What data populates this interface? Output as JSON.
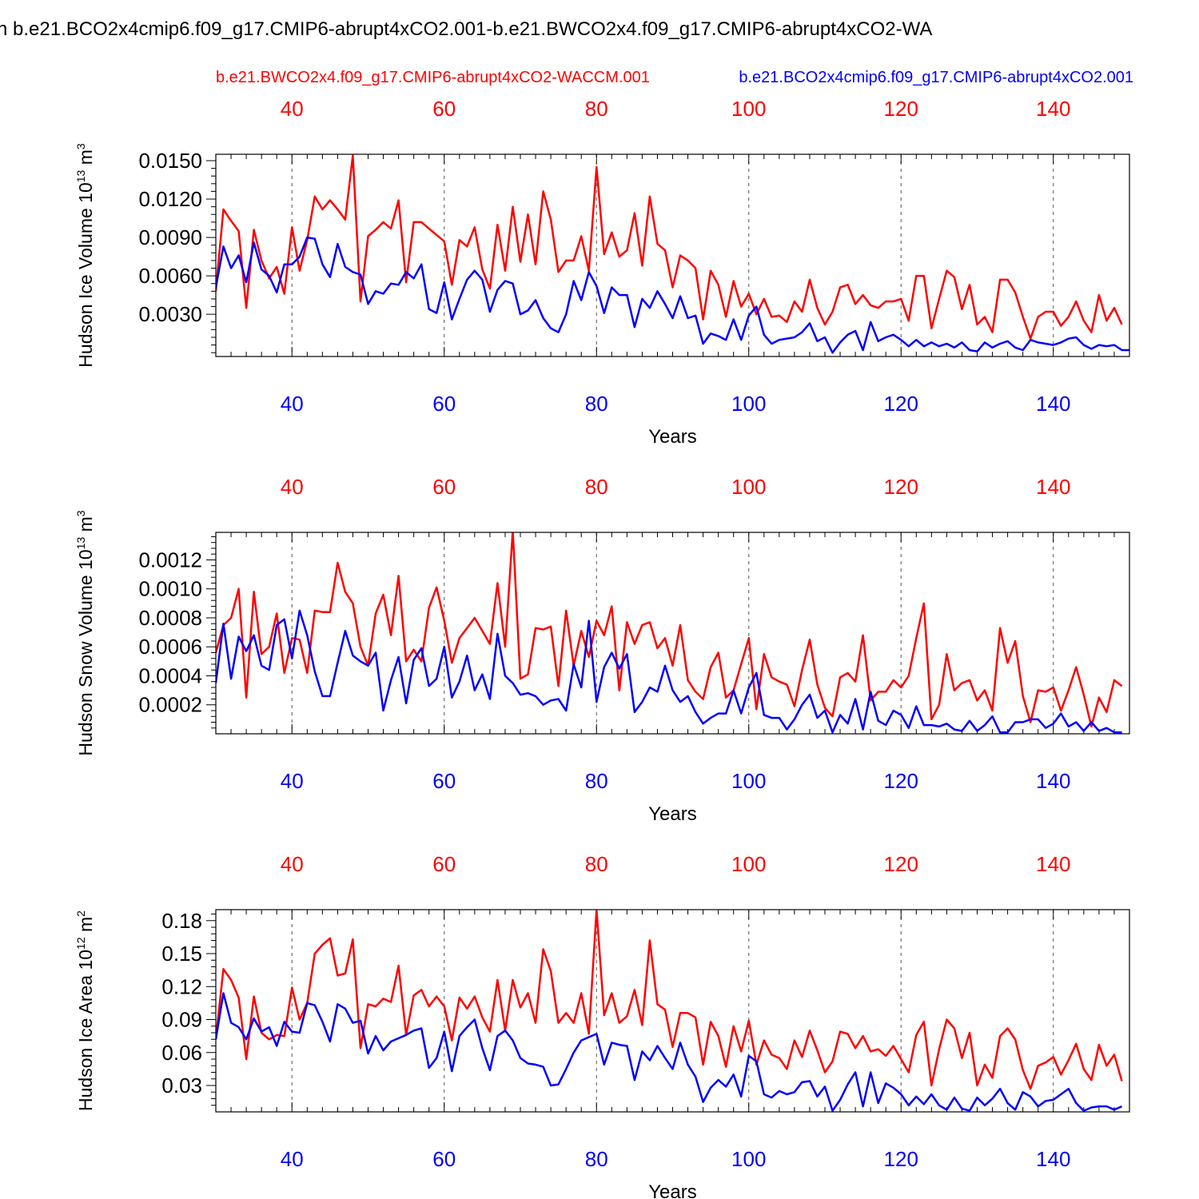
{
  "title": "n b.e21.BCO2x4cmip6.f09_g17.CMIP6-abrupt4xCO2.001-b.e21.BWCO2x4.f09_g17.CMIP6-abrupt4xCO2-WA",
  "legend": {
    "red": "b.e21.BWCO2x4.f09_g17.CMIP6-abrupt4xCO2-WACCM.001",
    "blue": "b.e21.BCO2x4cmip6.f09_g17.CMIP6-abrupt4xCO2.001"
  },
  "colors": {
    "red": "#ff0000",
    "blue": "#0000ff",
    "axis": "#000000",
    "grid": "#555555"
  },
  "chart_data": [
    {
      "type": "line",
      "ylabel": "Hudson Ice Volume 10",
      "ylabel_sup": "13",
      "ylabel_unit": " m",
      "ylabel_unit_sup": "3",
      "xlabel": "Years",
      "xlim": [
        30,
        150
      ],
      "ylim": [
        -0.0003,
        0.0155
      ],
      "x_ticks": [
        40,
        60,
        80,
        100,
        120,
        140
      ],
      "x_tick_labels": [
        "40",
        "60",
        "80",
        "100",
        "120",
        "140"
      ],
      "y_ticks": [
        0.003,
        0.006,
        0.009,
        0.012,
        0.015
      ],
      "y_tick_labels": [
        "0.0030",
        "0.0060",
        "0.0090",
        "0.0120",
        "0.0150"
      ],
      "series": [
        {
          "name": "b.e21.BWCO2x4.f09_g17.CMIP6-abrupt4xCO2-WACCM.001",
          "color": "red",
          "x_start": 30,
          "values": [
            0.0048,
            0.0112,
            0.0103,
            0.0095,
            0.0035,
            0.0096,
            0.0072,
            0.0058,
            0.0067,
            0.0046,
            0.0098,
            0.0064,
            0.0088,
            0.0122,
            0.0112,
            0.0119,
            0.0112,
            0.0104,
            0.0154,
            0.004,
            0.0091,
            0.0096,
            0.0102,
            0.0097,
            0.0119,
            0.0055,
            0.0102,
            0.0102,
            0.0097,
            0.0092,
            0.0087,
            0.0053,
            0.0088,
            0.0083,
            0.0098,
            0.0065,
            0.005,
            0.01,
            0.0064,
            0.0114,
            0.0071,
            0.0108,
            0.0069,
            0.0126,
            0.0104,
            0.0063,
            0.0072,
            0.0072,
            0.0091,
            0.0064,
            0.0145,
            0.0077,
            0.0094,
            0.0075,
            0.008,
            0.0109,
            0.0068,
            0.0122,
            0.0085,
            0.008,
            0.0051,
            0.0076,
            0.0072,
            0.0066,
            0.0026,
            0.0064,
            0.0053,
            0.0028,
            0.0056,
            0.0036,
            0.0046,
            0.003,
            0.0042,
            0.0028,
            0.0029,
            0.0024,
            0.004,
            0.0032,
            0.0057,
            0.0035,
            0.0022,
            0.0032,
            0.0051,
            0.0053,
            0.0038,
            0.0045,
            0.0037,
            0.0035,
            0.004,
            0.004,
            0.0042,
            0.0025,
            0.006,
            0.006,
            0.0019,
            0.0042,
            0.0064,
            0.0059,
            0.0034,
            0.0053,
            0.0022,
            0.0028,
            0.0016,
            0.0057,
            0.0057,
            0.0047,
            0.0028,
            0.0011,
            0.0028,
            0.0032,
            0.0032,
            0.0021,
            0.0028,
            0.004,
            0.0025,
            0.0016,
            0.0045,
            0.0025,
            0.0035,
            0.0022
          ]
        },
        {
          "name": "b.e21.BCO2x4cmip6.f09_g17.CMIP6-abrupt4xCO2.001",
          "color": "blue",
          "x_start": 30,
          "values": [
            0.0051,
            0.0083,
            0.0066,
            0.0076,
            0.0055,
            0.0086,
            0.0065,
            0.006,
            0.0047,
            0.0069,
            0.0069,
            0.0075,
            0.009,
            0.0089,
            0.0069,
            0.0059,
            0.0085,
            0.0067,
            0.0063,
            0.0061,
            0.0038,
            0.0048,
            0.0046,
            0.0054,
            0.0053,
            0.0063,
            0.0058,
            0.0069,
            0.0034,
            0.0031,
            0.0055,
            0.0026,
            0.0042,
            0.0057,
            0.0064,
            0.0057,
            0.0032,
            0.0049,
            0.0056,
            0.0054,
            0.003,
            0.0033,
            0.0041,
            0.0027,
            0.0019,
            0.0016,
            0.003,
            0.0056,
            0.0041,
            0.0063,
            0.0052,
            0.0031,
            0.0051,
            0.0045,
            0.0045,
            0.002,
            0.0042,
            0.0035,
            0.0048,
            0.0038,
            0.0027,
            0.0044,
            0.0027,
            0.0029,
            0.0007,
            0.0015,
            0.0013,
            0.001,
            0.0026,
            0.001,
            0.0029,
            0.0036,
            0.0014,
            0.0007,
            0.001,
            0.0011,
            0.0012,
            0.0016,
            0.0023,
            0.0009,
            0.0012,
            0.0,
            0.0008,
            0.0014,
            0.0017,
            0.0002,
            0.0024,
            0.0009,
            0.0012,
            0.0014,
            0.001,
            0.0005,
            0.001,
            0.0005,
            0.0008,
            0.0005,
            0.0007,
            0.0004,
            0.0008,
            0.0002,
            0.0001,
            0.0008,
            0.0004,
            0.0007,
            0.0009,
            0.0004,
            0.0002,
            0.001,
            0.0008,
            0.0007,
            0.0006,
            0.0008,
            0.0011,
            0.0012,
            0.0006,
            0.0003,
            0.0006,
            0.0005,
            0.0006,
            0.0002,
            0.0002
          ]
        }
      ]
    },
    {
      "type": "line",
      "ylabel": "Hudson Snow Volume 10",
      "ylabel_sup": "13",
      "ylabel_unit": " m",
      "ylabel_unit_sup": "3",
      "xlabel": "Years",
      "xlim": [
        30,
        150
      ],
      "ylim": [
        0.0,
        0.00139
      ],
      "x_ticks": [
        40,
        60,
        80,
        100,
        120,
        140
      ],
      "x_tick_labels": [
        "40",
        "60",
        "80",
        "100",
        "120",
        "140"
      ],
      "y_ticks": [
        0.0002,
        0.0004,
        0.0006,
        0.0008,
        0.001,
        0.0012
      ],
      "y_tick_labels": [
        "0.0002",
        "0.0004",
        "0.0006",
        "0.0008",
        "0.0010",
        "0.0012"
      ],
      "series": [
        {
          "name": "b.e21.BWCO2x4.f09_g17.CMIP6-abrupt4xCO2-WACCM.001",
          "color": "red",
          "x_start": 30,
          "values": [
            0.00056,
            0.00075,
            0.0008,
            0.001,
            0.00025,
            0.00098,
            0.00055,
            0.0006,
            0.00083,
            0.00042,
            0.00066,
            0.00065,
            0.00042,
            0.00085,
            0.00084,
            0.00084,
            0.00118,
            0.00098,
            0.0009,
            0.0006,
            0.00047,
            0.00083,
            0.00096,
            0.00068,
            0.00109,
            0.0005,
            0.00058,
            0.0005,
            0.00087,
            0.00101,
            0.00078,
            0.00049,
            0.00066,
            0.00073,
            0.0008,
            0.00071,
            0.00062,
            0.00104,
            0.0006,
            0.0014,
            0.00038,
            0.00041,
            0.00073,
            0.00072,
            0.00074,
            0.00033,
            0.00085,
            0.00047,
            0.00071,
            0.00053,
            0.00078,
            0.00068,
            0.00088,
            0.0003,
            0.00077,
            0.00062,
            0.00075,
            0.00077,
            0.00059,
            0.00066,
            0.00047,
            0.00075,
            0.00037,
            0.00029,
            0.00024,
            0.00046,
            0.00056,
            0.00025,
            0.0003,
            0.00048,
            0.00066,
            0.00017,
            0.00055,
            0.00039,
            0.00036,
            0.00034,
            0.00019,
            0.00044,
            0.00065,
            0.00034,
            0.00018,
            0.00012,
            0.00039,
            0.00042,
            0.00036,
            0.00068,
            0.00023,
            0.00029,
            0.00029,
            0.00037,
            0.00032,
            0.0004,
            0.00066,
            0.0009,
            0.0001,
            0.0002,
            0.00055,
            0.0003,
            0.00035,
            0.00037,
            0.00023,
            0.0003,
            0.00016,
            0.00073,
            0.00049,
            0.00064,
            0.00026,
            8e-05,
            0.0003,
            0.00029,
            0.00032,
            0.00016,
            0.0003,
            0.00046,
            0.00027,
            5e-05,
            0.00025,
            0.00015,
            0.00037,
            0.00033
          ]
        },
        {
          "name": "b.e21.BCO2x4cmip6.f09_g17.CMIP6-abrupt4xCO2.001",
          "color": "blue",
          "x_start": 30,
          "values": [
            0.00035,
            0.00076,
            0.00038,
            0.00067,
            0.00057,
            0.00068,
            0.00047,
            0.00044,
            0.00075,
            0.00079,
            0.00052,
            0.00085,
            0.00068,
            0.00043,
            0.00026,
            0.00026,
            0.00049,
            0.00071,
            0.00054,
            0.0005,
            0.00047,
            0.00056,
            0.00016,
            0.00037,
            0.00053,
            0.00021,
            0.00051,
            0.00059,
            0.00033,
            0.00038,
            0.0006,
            0.00025,
            0.00036,
            0.00054,
            0.0003,
            0.00041,
            0.00024,
            0.00069,
            0.0004,
            0.00035,
            0.00027,
            0.00028,
            0.00026,
            0.0002,
            0.00023,
            0.00024,
            0.00016,
            0.00048,
            0.00032,
            0.00078,
            0.00022,
            0.00046,
            0.00056,
            0.00045,
            0.00055,
            0.00015,
            0.00022,
            0.00032,
            0.00029,
            0.00047,
            0.0003,
            0.00022,
            0.00026,
            0.00015,
            7e-05,
            0.00011,
            0.00014,
            0.00014,
            0.0003,
            0.00014,
            0.00032,
            0.00042,
            0.00013,
            0.00011,
            0.00011,
            3e-05,
            0.0001,
            0.0002,
            0.00027,
            0.00011,
            0.00016,
            1e-05,
            0.00013,
            7e-05,
            0.00024,
            3e-05,
            0.00029,
            9e-05,
            6e-05,
            0.00016,
            0.00013,
            4e-05,
            0.00019,
            6e-05,
            6e-05,
            5e-05,
            7e-05,
            3e-05,
            2e-05,
            9e-05,
            2e-05,
            6e-05,
            0.00012,
            1e-05,
            1e-05,
            8e-05,
            8e-05,
            0.0001,
            0.0001,
            4e-05,
            7e-05,
            0.00014,
            5e-05,
            8e-05,
            2e-05,
            8e-05,
            2e-05,
            4e-05,
            1e-05,
            1e-05
          ]
        }
      ]
    },
    {
      "type": "line",
      "ylabel": "Hudson Ice Area 10",
      "ylabel_sup": "12",
      "ylabel_unit": " m",
      "ylabel_unit_sup": "2",
      "xlabel": "Years",
      "xlim": [
        30,
        150
      ],
      "ylim": [
        0.006,
        0.19
      ],
      "x_ticks": [
        40,
        60,
        80,
        100,
        120,
        140
      ],
      "x_tick_labels": [
        "40",
        "60",
        "80",
        "100",
        "120",
        "140"
      ],
      "y_ticks": [
        0.03,
        0.06,
        0.09,
        0.12,
        0.15,
        0.18
      ],
      "y_tick_labels": [
        "0.03",
        "0.06",
        "0.09",
        "0.12",
        "0.15",
        "0.18"
      ],
      "series": [
        {
          "name": "b.e21.BWCO2x4.f09_g17.CMIP6-abrupt4xCO2-WACCM.001",
          "color": "red",
          "x_start": 30,
          "values": [
            0.072,
            0.136,
            0.126,
            0.11,
            0.054,
            0.111,
            0.078,
            0.072,
            0.076,
            0.075,
            0.119,
            0.09,
            0.105,
            0.15,
            0.158,
            0.164,
            0.13,
            0.132,
            0.163,
            0.064,
            0.104,
            0.102,
            0.109,
            0.106,
            0.139,
            0.076,
            0.112,
            0.117,
            0.102,
            0.111,
            0.102,
            0.071,
            0.11,
            0.1,
            0.111,
            0.092,
            0.079,
            0.126,
            0.08,
            0.126,
            0.101,
            0.114,
            0.087,
            0.154,
            0.134,
            0.087,
            0.096,
            0.087,
            0.114,
            0.077,
            0.19,
            0.094,
            0.114,
            0.087,
            0.093,
            0.117,
            0.085,
            0.162,
            0.104,
            0.099,
            0.065,
            0.096,
            0.096,
            0.092,
            0.049,
            0.088,
            0.075,
            0.047,
            0.084,
            0.061,
            0.089,
            0.049,
            0.071,
            0.058,
            0.055,
            0.045,
            0.071,
            0.056,
            0.08,
            0.062,
            0.042,
            0.052,
            0.079,
            0.077,
            0.064,
            0.075,
            0.061,
            0.063,
            0.057,
            0.066,
            0.054,
            0.042,
            0.076,
            0.088,
            0.03,
            0.063,
            0.09,
            0.082,
            0.055,
            0.078,
            0.03,
            0.049,
            0.037,
            0.075,
            0.082,
            0.072,
            0.044,
            0.027,
            0.048,
            0.051,
            0.056,
            0.04,
            0.053,
            0.068,
            0.045,
            0.035,
            0.067,
            0.048,
            0.058,
            0.034
          ]
        },
        {
          "name": "b.e21.BCO2x4cmip6.f09_g17.CMIP6-abrupt4xCO2.001",
          "color": "blue",
          "x_start": 30,
          "values": [
            0.072,
            0.114,
            0.087,
            0.083,
            0.072,
            0.091,
            0.079,
            0.083,
            0.066,
            0.088,
            0.079,
            0.078,
            0.105,
            0.103,
            0.088,
            0.07,
            0.104,
            0.1,
            0.087,
            0.089,
            0.059,
            0.075,
            0.062,
            0.07,
            0.073,
            0.076,
            0.08,
            0.082,
            0.046,
            0.055,
            0.079,
            0.043,
            0.075,
            0.083,
            0.09,
            0.064,
            0.044,
            0.075,
            0.08,
            0.071,
            0.055,
            0.05,
            0.049,
            0.047,
            0.03,
            0.031,
            0.045,
            0.06,
            0.071,
            0.074,
            0.077,
            0.049,
            0.069,
            0.067,
            0.066,
            0.035,
            0.061,
            0.053,
            0.066,
            0.055,
            0.045,
            0.069,
            0.049,
            0.038,
            0.015,
            0.028,
            0.035,
            0.029,
            0.04,
            0.02,
            0.057,
            0.052,
            0.022,
            0.019,
            0.025,
            0.022,
            0.024,
            0.033,
            0.034,
            0.02,
            0.029,
            0.007,
            0.017,
            0.031,
            0.042,
            0.011,
            0.042,
            0.014,
            0.032,
            0.028,
            0.022,
            0.012,
            0.02,
            0.013,
            0.022,
            0.012,
            0.008,
            0.019,
            0.009,
            0.007,
            0.019,
            0.012,
            0.018,
            0.027,
            0.014,
            0.008,
            0.024,
            0.02,
            0.011,
            0.016,
            0.017,
            0.022,
            0.027,
            0.014,
            0.007,
            0.01,
            0.011,
            0.011,
            0.008,
            0.011
          ]
        }
      ]
    }
  ]
}
